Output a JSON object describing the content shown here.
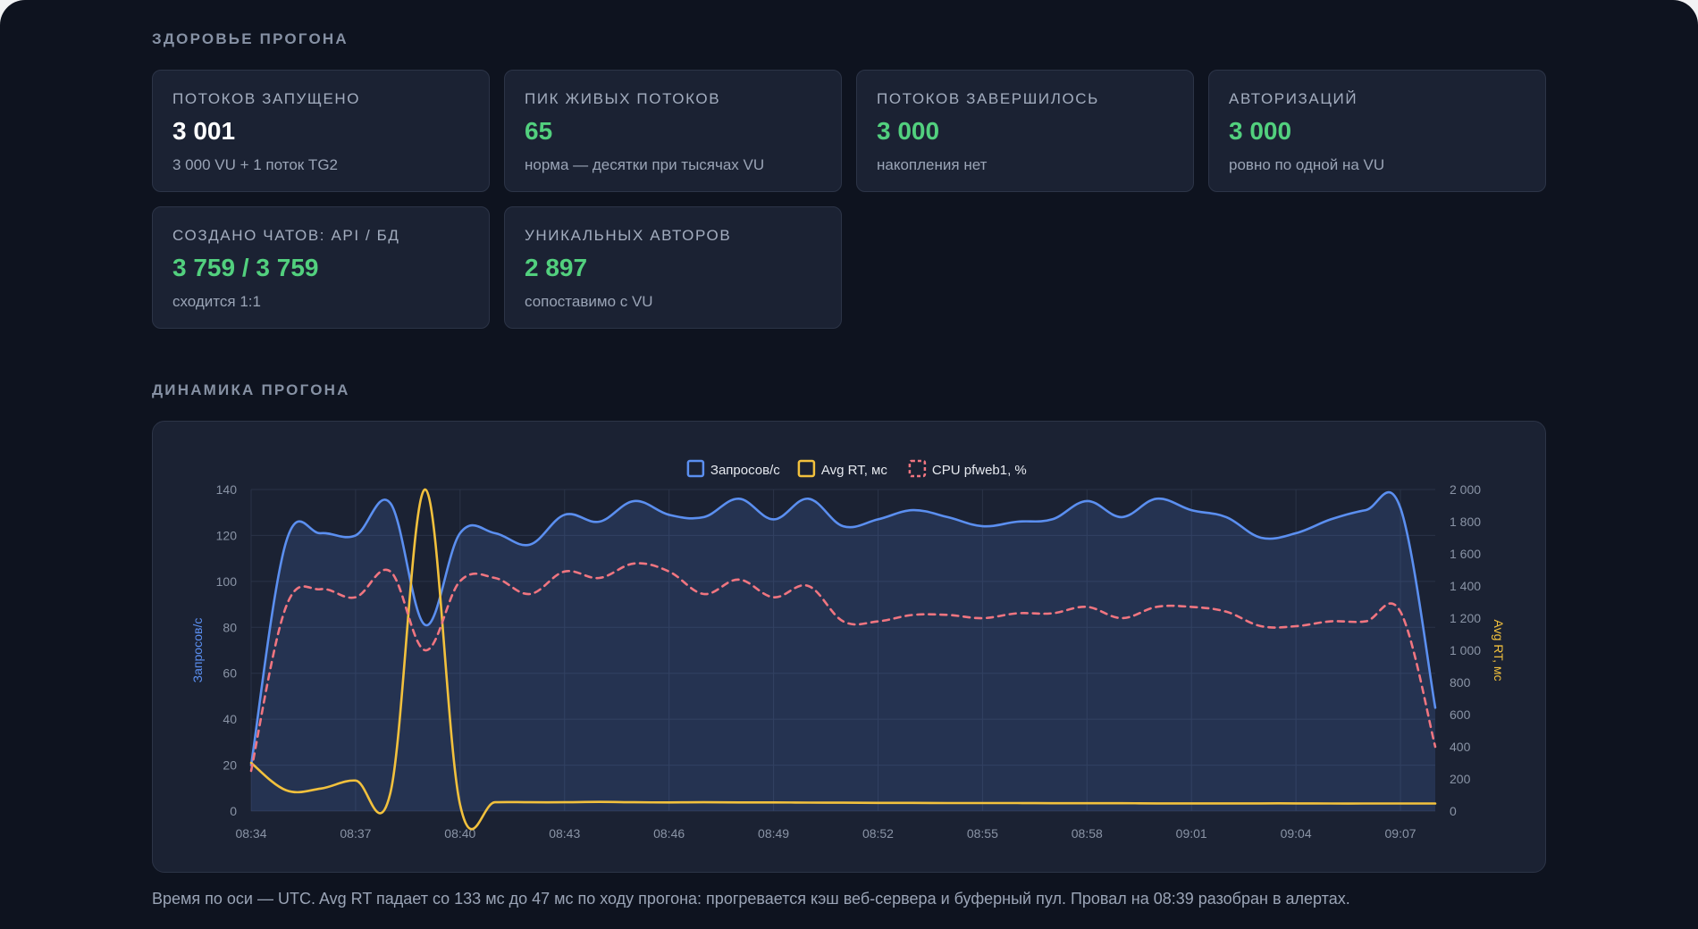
{
  "health": {
    "title": "ЗДОРОВЬЕ ПРОГОНА",
    "cards": [
      {
        "label": "ПОТОКОВ ЗАПУЩЕНО",
        "value": "3 001",
        "sub": "3 000 VU + 1 поток TG2",
        "value_color": "#ffffff"
      },
      {
        "label": "ПИК ЖИВЫХ ПОТОКОВ",
        "value": "65",
        "sub": "норма — десятки при тысячах VU",
        "value_color": "#52d07e"
      },
      {
        "label": "ПОТОКОВ ЗАВЕРШИЛОСЬ",
        "value": "3 000",
        "sub": "накопления нет",
        "value_color": "#52d07e"
      },
      {
        "label": "АВТОРИЗАЦИЙ",
        "value": "3 000",
        "sub": "ровно по одной на VU",
        "value_color": "#52d07e"
      },
      {
        "label": "СОЗДАНО ЧАТОВ: API / БД",
        "value": "3 759 / 3 759",
        "sub": "сходится 1:1",
        "value_color": "#52d07e"
      },
      {
        "label": "УНИКАЛЬНЫХ АВТОРОВ",
        "value": "2 897",
        "sub": "сопоставимо с VU",
        "value_color": "#52d07e"
      }
    ]
  },
  "dynamics": {
    "title": "ДИНАМИКА ПРОГОНА"
  },
  "chart_data": {
    "type": "line",
    "title": "",
    "legend_position": "top-center",
    "grid": true,
    "x_start": "08:34",
    "x_end": "09:08",
    "x_ticks": [
      "08:34",
      "08:37",
      "08:40",
      "08:43",
      "08:46",
      "08:49",
      "08:52",
      "08:55",
      "08:58",
      "09:01",
      "09:04",
      "09:07"
    ],
    "y_left": {
      "label": "Запросов/с",
      "range": [
        0,
        140
      ],
      "ticks": [
        "0",
        "20",
        "40",
        "60",
        "80",
        "100",
        "120",
        "140"
      ]
    },
    "y_right": {
      "label": "Avg RT, мс",
      "range": [
        0,
        2000
      ],
      "ticks": [
        "0",
        "200",
        "400",
        "600",
        "800",
        "1 000",
        "1 200",
        "1 400",
        "1 600",
        "1 800",
        "2 000"
      ]
    },
    "series": [
      {
        "name": "Запросов/с",
        "axis": "left",
        "color": "#5b8ff0",
        "style": "solid-filled",
        "points": [
          [
            "08:34",
            20
          ],
          [
            "08:35",
            117
          ],
          [
            "08:36",
            121
          ],
          [
            "08:37",
            120
          ],
          [
            "08:38",
            134
          ],
          [
            "08:39",
            81
          ],
          [
            "08:40",
            121
          ],
          [
            "08:41",
            121
          ],
          [
            "08:42",
            116
          ],
          [
            "08:43",
            129
          ],
          [
            "08:44",
            126
          ],
          [
            "08:45",
            135
          ],
          [
            "08:46",
            129
          ],
          [
            "08:47",
            128
          ],
          [
            "08:48",
            136
          ],
          [
            "08:49",
            127
          ],
          [
            "08:50",
            136
          ],
          [
            "08:51",
            124
          ],
          [
            "08:52",
            127
          ],
          [
            "08:53",
            131
          ],
          [
            "08:54",
            128
          ],
          [
            "08:55",
            124
          ],
          [
            "08:56",
            126
          ],
          [
            "08:57",
            127
          ],
          [
            "08:58",
            135
          ],
          [
            "08:59",
            128
          ],
          [
            "09:00",
            136
          ],
          [
            "09:01",
            131
          ],
          [
            "09:02",
            128
          ],
          [
            "09:03",
            119
          ],
          [
            "09:04",
            121
          ],
          [
            "09:05",
            127
          ],
          [
            "09:06",
            131
          ],
          [
            "09:07",
            132
          ],
          [
            "09:08",
            45
          ]
        ]
      },
      {
        "name": "Avg RT, мс",
        "axis": "right",
        "color": "#f2c13d",
        "style": "solid",
        "points": [
          [
            "08:34",
            300
          ],
          [
            "08:35",
            130
          ],
          [
            "08:36",
            140
          ],
          [
            "08:37",
            190
          ],
          [
            "08:38",
            115
          ],
          [
            "08:39",
            2000
          ],
          [
            "08:40",
            40
          ],
          [
            "08:41",
            55
          ],
          [
            "08:42",
            55
          ],
          [
            "08:43",
            55
          ],
          [
            "08:44",
            57
          ],
          [
            "08:45",
            55
          ],
          [
            "08:46",
            54
          ],
          [
            "08:47",
            55
          ],
          [
            "08:48",
            54
          ],
          [
            "08:49",
            54
          ],
          [
            "08:50",
            53
          ],
          [
            "08:51",
            52
          ],
          [
            "08:52",
            51
          ],
          [
            "08:53",
            51
          ],
          [
            "08:54",
            50
          ],
          [
            "08:55",
            50
          ],
          [
            "08:56",
            50
          ],
          [
            "08:57",
            49
          ],
          [
            "08:58",
            49
          ],
          [
            "08:59",
            49
          ],
          [
            "09:00",
            48
          ],
          [
            "09:01",
            48
          ],
          [
            "09:02",
            48
          ],
          [
            "09:03",
            48
          ],
          [
            "09:04",
            48
          ],
          [
            "09:05",
            47
          ],
          [
            "09:06",
            47
          ],
          [
            "09:07",
            47
          ],
          [
            "09:08",
            47
          ]
        ]
      },
      {
        "name": "CPU pfweb1, %",
        "axis": "right",
        "color": "#f07580",
        "style": "dashed",
        "points": [
          [
            "08:34",
            250
          ],
          [
            "08:35",
            1270
          ],
          [
            "08:36",
            1380
          ],
          [
            "08:37",
            1330
          ],
          [
            "08:38",
            1490
          ],
          [
            "08:39",
            1000
          ],
          [
            "08:40",
            1430
          ],
          [
            "08:41",
            1450
          ],
          [
            "08:42",
            1350
          ],
          [
            "08:43",
            1490
          ],
          [
            "08:44",
            1450
          ],
          [
            "08:45",
            1540
          ],
          [
            "08:46",
            1490
          ],
          [
            "08:47",
            1350
          ],
          [
            "08:48",
            1440
          ],
          [
            "08:49",
            1330
          ],
          [
            "08:50",
            1400
          ],
          [
            "08:51",
            1180
          ],
          [
            "08:52",
            1180
          ],
          [
            "08:53",
            1220
          ],
          [
            "08:54",
            1220
          ],
          [
            "08:55",
            1200
          ],
          [
            "08:56",
            1230
          ],
          [
            "08:57",
            1230
          ],
          [
            "08:58",
            1270
          ],
          [
            "08:59",
            1200
          ],
          [
            "09:00",
            1270
          ],
          [
            "09:01",
            1270
          ],
          [
            "09:02",
            1240
          ],
          [
            "09:03",
            1150
          ],
          [
            "09:04",
            1150
          ],
          [
            "09:05",
            1180
          ],
          [
            "09:06",
            1180
          ],
          [
            "09:07",
            1240
          ],
          [
            "09:08",
            400
          ]
        ]
      }
    ]
  },
  "footnote": "Время по оси — UTC. Avg RT падает со 133 мс до 47 мс по ходу прогона: прогревается кэш веб-сервера и буферный пул. Провал на 08:39 разобран в алертах."
}
